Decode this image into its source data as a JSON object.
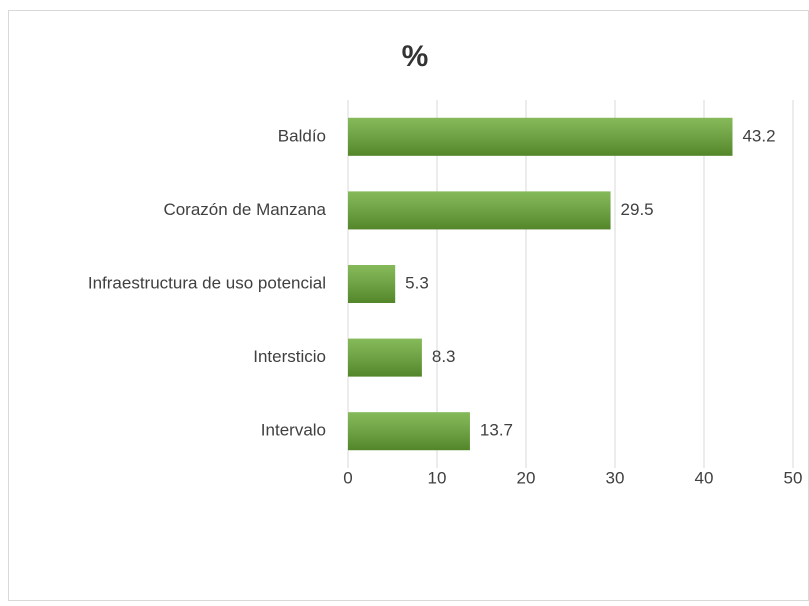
{
  "chart_data": {
    "type": "bar",
    "orientation": "horizontal",
    "title": "%",
    "categories": [
      "Baldío",
      "Corazón de Manzana",
      "Infraestructura de uso potencial",
      "Intersticio",
      "Intervalo"
    ],
    "values": [
      43.2,
      29.5,
      5.3,
      8.3,
      13.7
    ],
    "color": "#6aaa35",
    "xlim": [
      0,
      50
    ],
    "xticks": [
      0,
      10,
      20,
      30,
      40,
      50
    ],
    "grid": true
  }
}
